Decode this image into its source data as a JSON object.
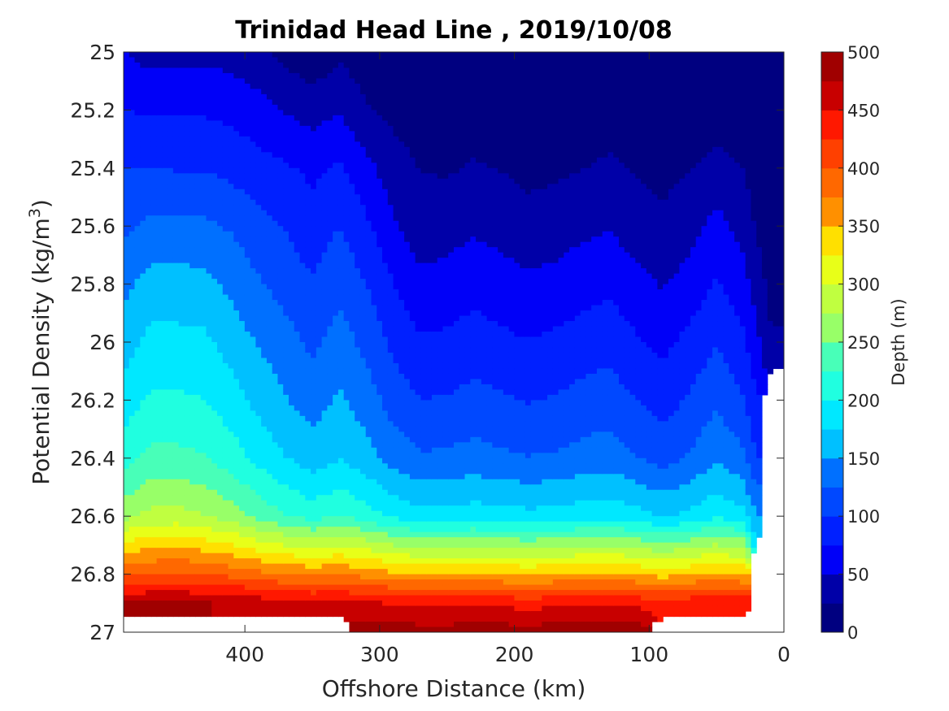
{
  "chart_data": {
    "type": "heatmap",
    "subtype": "filled-contour",
    "title": "Trinidad Head Line , 2019/10/08",
    "xlabel": "Offshore Distance (km)",
    "ylabel": "Potential Density (kg/m",
    "ylabel_sup": "3",
    "ylabel_end": ")",
    "x_reversed": true,
    "y_reversed": true,
    "xlim": [
      490,
      0
    ],
    "ylim": [
      25,
      27
    ],
    "x_ticks": [
      400,
      300,
      200,
      100,
      0
    ],
    "x_tick_labels": [
      "400",
      "300",
      "200",
      "100",
      "0"
    ],
    "y_ticks": [
      25,
      25.2,
      25.4,
      25.6,
      25.8,
      26,
      26.2,
      26.4,
      26.6,
      26.8,
      27
    ],
    "y_tick_labels": [
      "25",
      "25.2",
      "25.4",
      "25.6",
      "25.8",
      "26",
      "26.2",
      "26.4",
      "26.6",
      "26.8",
      "27"
    ],
    "colorbar": {
      "label": "Depth (m)",
      "range": [
        0,
        500
      ],
      "ticks": [
        0,
        50,
        100,
        150,
        200,
        250,
        300,
        350,
        400,
        450,
        500
      ],
      "tick_labels": [
        "0",
        "50",
        "100",
        "150",
        "200",
        "250",
        "300",
        "350",
        "400",
        "450",
        "500"
      ],
      "colormap": "jet",
      "levels": 20
    },
    "colors": [
      "#000080",
      "#0000a8",
      "#0000d0",
      "#0000f8",
      "#0020ff",
      "#0048ff",
      "#0070ff",
      "#0098ff",
      "#00c0ff",
      "#00e8ff",
      "#20ffe0",
      "#48ffb8",
      "#70ff90",
      "#98ff68",
      "#c0ff40",
      "#e8ff18",
      "#ffe000",
      "#ffb800",
      "#ff9000",
      "#ff6800",
      "#ff4000",
      "#ff1800",
      "#f00000",
      "#c80000",
      "#a00000"
    ],
    "x": [
      490,
      470,
      450,
      430,
      410,
      390,
      370,
      350,
      330,
      310,
      290,
      270,
      250,
      230,
      210,
      190,
      170,
      150,
      130,
      110,
      90,
      70,
      50,
      30,
      20,
      10
    ],
    "sigma_levels": [
      25.0,
      25.2,
      25.4,
      25.6,
      25.8,
      26.0,
      26.2,
      26.4,
      26.6,
      26.8,
      26.9,
      27.0
    ],
    "depth": [
      [
        50,
        40,
        40,
        42,
        40,
        30,
        18,
        5,
        20,
        10,
        6,
        4,
        4,
        4,
        4,
        4,
        4,
        4,
        4,
        4,
        4,
        4,
        4,
        4,
        4,
        4
      ],
      [
        75,
        72,
        72,
        72,
        68,
        60,
        48,
        40,
        48,
        28,
        18,
        12,
        12,
        10,
        10,
        10,
        10,
        10,
        10,
        10,
        10,
        10,
        10,
        10,
        6,
        4
      ],
      [
        100,
        100,
        98,
        98,
        92,
        84,
        78,
        70,
        78,
        58,
        36,
        24,
        22,
        28,
        24,
        20,
        20,
        24,
        30,
        22,
        18,
        24,
        34,
        24,
        12,
        8
      ],
      [
        120,
        132,
        132,
        130,
        122,
        108,
        98,
        84,
        100,
        80,
        54,
        36,
        40,
        46,
        40,
        32,
        38,
        44,
        48,
        38,
        30,
        40,
        58,
        40,
        22,
        12
      ],
      [
        142,
        160,
        160,
        158,
        144,
        128,
        116,
        102,
        118,
        100,
        76,
        56,
        60,
        66,
        62,
        56,
        58,
        64,
        70,
        58,
        48,
        60,
        78,
        60,
        36,
        18
      ],
      [
        162,
        182,
        182,
        180,
        164,
        148,
        134,
        120,
        136,
        118,
        94,
        78,
        80,
        86,
        80,
        76,
        80,
        86,
        92,
        78,
        68,
        82,
        98,
        80,
        56,
        28
      ],
      [
        186,
        204,
        204,
        200,
        186,
        168,
        152,
        138,
        154,
        138,
        114,
        100,
        102,
        108,
        104,
        98,
        102,
        108,
        112,
        100,
        88,
        104,
        120,
        102,
        78,
        0
      ],
      [
        214,
        232,
        232,
        226,
        212,
        192,
        176,
        162,
        174,
        160,
        140,
        128,
        130,
        134,
        130,
        126,
        128,
        134,
        138,
        126,
        116,
        128,
        146,
        130,
        100,
        0
      ],
      [
        266,
        282,
        284,
        276,
        262,
        242,
        226,
        214,
        224,
        212,
        194,
        184,
        184,
        188,
        186,
        182,
        184,
        188,
        192,
        184,
        172,
        182,
        196,
        182,
        150,
        0
      ],
      [
        398,
        402,
        404,
        400,
        392,
        382,
        374,
        370,
        374,
        366,
        356,
        350,
        350,
        352,
        350,
        346,
        350,
        354,
        356,
        350,
        340,
        348,
        356,
        348,
        0,
        0
      ],
      [
        476,
        478,
        478,
        476,
        472,
        466,
        460,
        456,
        458,
        454,
        448,
        444,
        444,
        446,
        444,
        440,
        444,
        446,
        448,
        444,
        438,
        442,
        448,
        444,
        0,
        0
      ],
      [
        0,
        0,
        0,
        0,
        0,
        0,
        0,
        0,
        0,
        490,
        488,
        486,
        486,
        488,
        488,
        486,
        488,
        490,
        490,
        488,
        0,
        0,
        0,
        0,
        0,
        0
      ]
    ]
  }
}
